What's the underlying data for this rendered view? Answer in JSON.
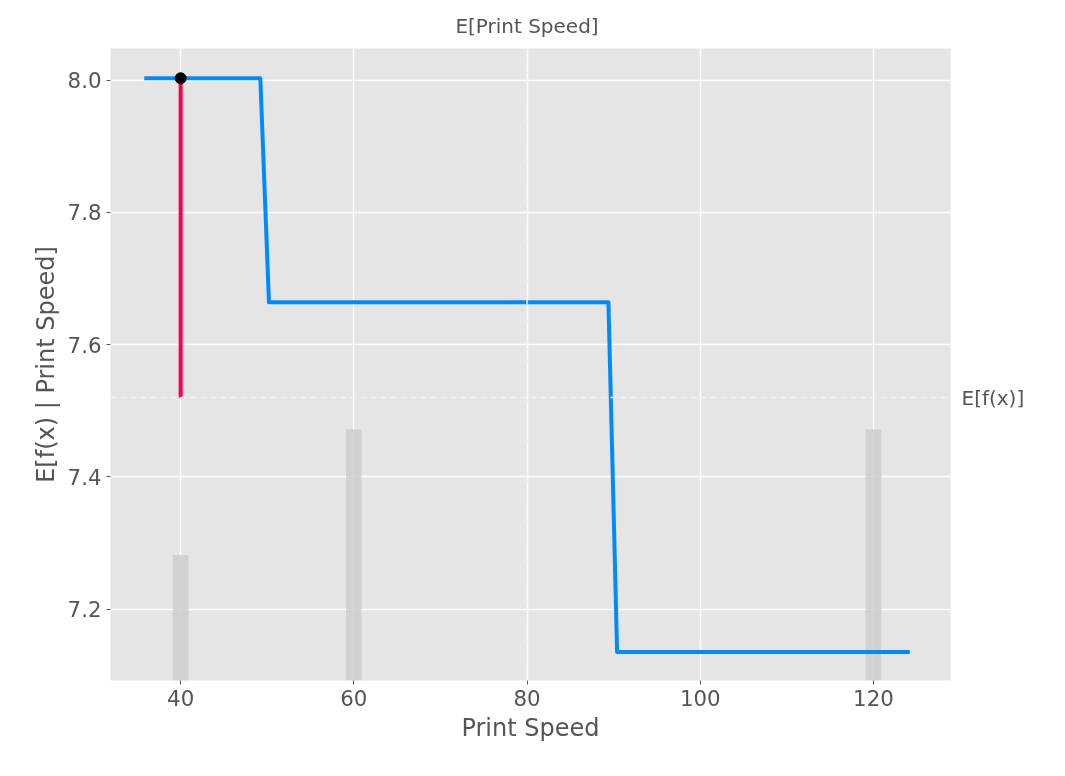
{
  "chart_data": {
    "type": "line",
    "xlabel": "Print Speed",
    "ylabel": "E[f(x) | Print Speed]",
    "xlim": [
      31.9,
      128.9
    ],
    "xticks": [
      40,
      60,
      80,
      100,
      120
    ],
    "ylim": [
      7.092,
      8.048
    ],
    "yticks": [
      {
        "value": 7.2,
        "label": "7.2"
      },
      {
        "value": 7.4,
        "label": "7.4"
      },
      {
        "value": 7.6,
        "label": "7.6"
      },
      {
        "value": 7.8,
        "label": "7.8"
      },
      {
        "value": 8.0,
        "label": "8.0"
      }
    ],
    "grid": true,
    "line_style": "solid",
    "series": [
      {
        "type": "bar",
        "color": "#cccccc",
        "x": [
          40,
          60,
          120
        ],
        "base": [
          7.092,
          7.092,
          7.092
        ],
        "values": [
          0.19,
          0.38,
          0.38
        ]
      },
      {
        "color": "#008bfb",
        "x": [
          35.8,
          49.2,
          50.2,
          89.4,
          90.4,
          124.2
        ],
        "values": [
          8.003,
          8.003,
          7.664,
          7.664,
          7.135,
          7.135
        ]
      },
      {
        "type": "line",
        "color": "#ff0051",
        "x": [
          40,
          40
        ],
        "values": [
          7.52,
          8.003
        ]
      },
      {
        "type": "scatter",
        "color": "#000000",
        "x": [
          40
        ],
        "values": [
          8.003
        ]
      }
    ],
    "ref_lines": [
      {
        "axis": "y",
        "value": 7.52,
        "label": "E[f(x)]",
        "color": "#f2f2f2",
        "line_style": "dashed"
      },
      {
        "axis": "x",
        "value": 80,
        "label": "E[Print Speed]",
        "color": "#f2f2f2",
        "line_style": "dashed"
      }
    ]
  }
}
